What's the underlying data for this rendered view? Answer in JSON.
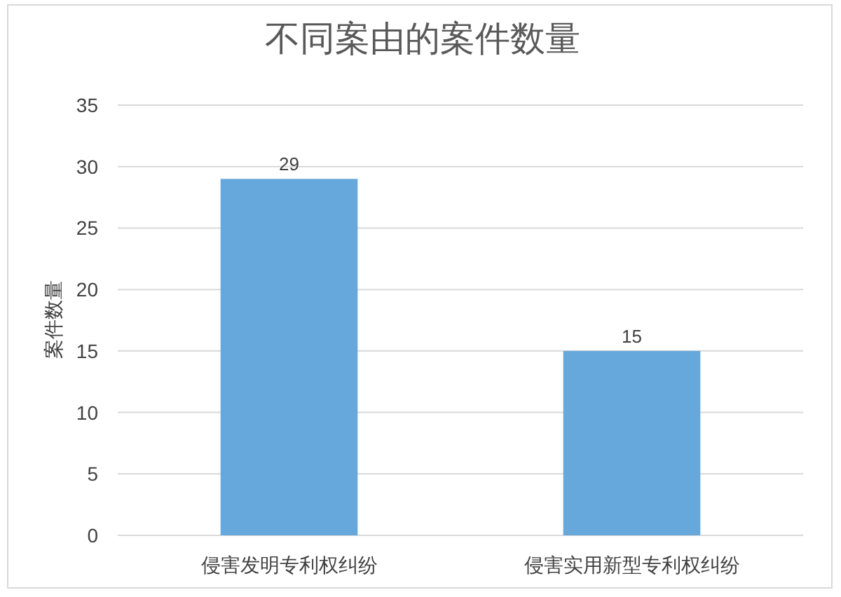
{
  "chart_data": {
    "type": "bar",
    "title": "不同案由的案件数量",
    "ylabel": "案件数量",
    "categories": [
      "侵害发明专利权纠纷",
      "侵害实用新型专利权纠纷"
    ],
    "values": [
      29,
      15
    ],
    "color": "#66a8dc",
    "ylim": [
      0,
      35
    ],
    "yticks": [
      0,
      5,
      10,
      15,
      20,
      25,
      30,
      35
    ],
    "grid": "y",
    "data_labels": true
  }
}
